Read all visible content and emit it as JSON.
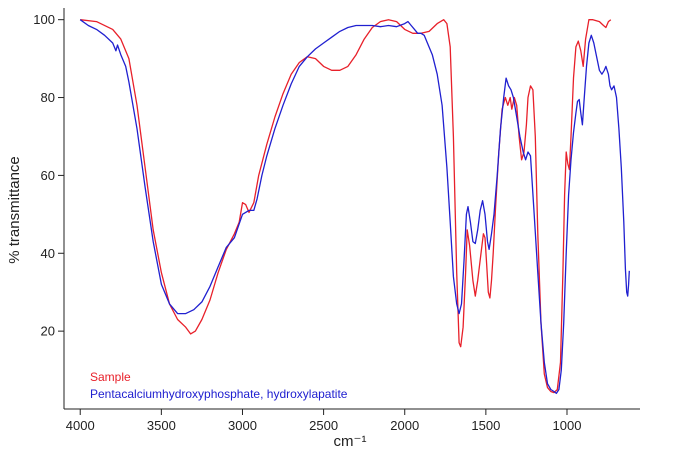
{
  "chart_data": {
    "type": "line",
    "title": "",
    "xlabel": "cm⁻¹",
    "ylabel": "% transmittance",
    "xlim": [
      4100,
      550
    ],
    "ylim": [
      0,
      103
    ],
    "x_reversed": true,
    "x_ticks": [
      4000,
      3500,
      3000,
      2500,
      2000,
      1500,
      1000
    ],
    "y_ticks": [
      20,
      40,
      60,
      80,
      100
    ],
    "grid": false,
    "legend_position": "bottom-left",
    "series": [
      {
        "name": "Sample",
        "color": "#e8202a",
        "points": [
          [
            4000,
            100
          ],
          [
            3900,
            99.5
          ],
          [
            3800,
            97.5
          ],
          [
            3750,
            95
          ],
          [
            3700,
            90
          ],
          [
            3650,
            78
          ],
          [
            3600,
            62
          ],
          [
            3550,
            46
          ],
          [
            3500,
            35
          ],
          [
            3450,
            27
          ],
          [
            3400,
            23
          ],
          [
            3350,
            21
          ],
          [
            3320,
            19.3
          ],
          [
            3290,
            20
          ],
          [
            3250,
            23
          ],
          [
            3200,
            28
          ],
          [
            3150,
            35
          ],
          [
            3100,
            41
          ],
          [
            3050,
            45
          ],
          [
            3020,
            48
          ],
          [
            3000,
            53
          ],
          [
            2980,
            52.5
          ],
          [
            2960,
            50.5
          ],
          [
            2930,
            53
          ],
          [
            2900,
            60
          ],
          [
            2850,
            68
          ],
          [
            2800,
            75
          ],
          [
            2750,
            81
          ],
          [
            2700,
            86
          ],
          [
            2650,
            89
          ],
          [
            2600,
            90.5
          ],
          [
            2550,
            90
          ],
          [
            2500,
            88
          ],
          [
            2450,
            87
          ],
          [
            2400,
            87
          ],
          [
            2350,
            88
          ],
          [
            2300,
            91
          ],
          [
            2250,
            95
          ],
          [
            2200,
            98
          ],
          [
            2150,
            99.5
          ],
          [
            2100,
            100
          ],
          [
            2050,
            99.5
          ],
          [
            2000,
            97.5
          ],
          [
            1950,
            96.5
          ],
          [
            1900,
            96.5
          ],
          [
            1850,
            97
          ],
          [
            1800,
            99
          ],
          [
            1760,
            100
          ],
          [
            1740,
            99
          ],
          [
            1720,
            93
          ],
          [
            1700,
            70
          ],
          [
            1680,
            35
          ],
          [
            1665,
            17
          ],
          [
            1655,
            16
          ],
          [
            1640,
            21
          ],
          [
            1625,
            35
          ],
          [
            1615,
            46
          ],
          [
            1600,
            42
          ],
          [
            1580,
            33
          ],
          [
            1565,
            29
          ],
          [
            1550,
            33
          ],
          [
            1530,
            40
          ],
          [
            1515,
            45
          ],
          [
            1505,
            44
          ],
          [
            1495,
            37
          ],
          [
            1485,
            30
          ],
          [
            1475,
            28.5
          ],
          [
            1465,
            33
          ],
          [
            1455,
            40
          ],
          [
            1440,
            52
          ],
          [
            1420,
            66
          ],
          [
            1400,
            77
          ],
          [
            1380,
            80
          ],
          [
            1365,
            78
          ],
          [
            1350,
            80
          ],
          [
            1340,
            77
          ],
          [
            1325,
            80
          ],
          [
            1310,
            78
          ],
          [
            1295,
            70
          ],
          [
            1280,
            64
          ],
          [
            1265,
            66
          ],
          [
            1250,
            73
          ],
          [
            1240,
            80
          ],
          [
            1225,
            83
          ],
          [
            1210,
            82
          ],
          [
            1195,
            70
          ],
          [
            1180,
            45
          ],
          [
            1160,
            22
          ],
          [
            1140,
            9
          ],
          [
            1120,
            5.5
          ],
          [
            1100,
            4.5
          ],
          [
            1080,
            4.2
          ],
          [
            1060,
            5
          ],
          [
            1040,
            12
          ],
          [
            1025,
            35
          ],
          [
            1015,
            55
          ],
          [
            1005,
            66
          ],
          [
            995,
            63
          ],
          [
            985,
            61.5
          ],
          [
            975,
            70
          ],
          [
            960,
            85
          ],
          [
            945,
            93
          ],
          [
            930,
            94.5
          ],
          [
            915,
            92
          ],
          [
            900,
            88
          ],
          [
            885,
            95
          ],
          [
            865,
            100
          ],
          [
            840,
            100
          ],
          [
            800,
            99.5
          ],
          [
            775,
            98.5
          ],
          [
            760,
            98
          ],
          [
            745,
            99.5
          ],
          [
            730,
            100
          ]
        ]
      },
      {
        "name": "Pentacalciumhydroxyphosphate, hydroxylapatite",
        "color": "#2020d0",
        "points": [
          [
            4000,
            100
          ],
          [
            3950,
            98.5
          ],
          [
            3900,
            97.5
          ],
          [
            3850,
            96
          ],
          [
            3800,
            94
          ],
          [
            3780,
            92
          ],
          [
            3770,
            93.5
          ],
          [
            3750,
            91
          ],
          [
            3720,
            88
          ],
          [
            3700,
            84
          ],
          [
            3650,
            72
          ],
          [
            3600,
            57
          ],
          [
            3550,
            43
          ],
          [
            3500,
            32
          ],
          [
            3450,
            27
          ],
          [
            3400,
            24.5
          ],
          [
            3350,
            24.5
          ],
          [
            3300,
            25.5
          ],
          [
            3250,
            27.5
          ],
          [
            3200,
            31.5
          ],
          [
            3150,
            36.5
          ],
          [
            3100,
            41.5
          ],
          [
            3050,
            44
          ],
          [
            3000,
            50
          ],
          [
            2960,
            51
          ],
          [
            2930,
            51
          ],
          [
            2910,
            54
          ],
          [
            2880,
            60
          ],
          [
            2850,
            65
          ],
          [
            2800,
            72
          ],
          [
            2750,
            78
          ],
          [
            2700,
            83.5
          ],
          [
            2650,
            88
          ],
          [
            2600,
            90.5
          ],
          [
            2550,
            92.5
          ],
          [
            2500,
            94
          ],
          [
            2450,
            95.5
          ],
          [
            2400,
            97
          ],
          [
            2350,
            98
          ],
          [
            2300,
            98.5
          ],
          [
            2250,
            98.5
          ],
          [
            2200,
            98.5
          ],
          [
            2150,
            98.2
          ],
          [
            2100,
            98.5
          ],
          [
            2050,
            98.2
          ],
          [
            2000,
            99
          ],
          [
            1980,
            99.5
          ],
          [
            1960,
            98.5
          ],
          [
            1940,
            97.5
          ],
          [
            1920,
            96.5
          ],
          [
            1900,
            96.5
          ],
          [
            1880,
            96
          ],
          [
            1860,
            94
          ],
          [
            1830,
            91
          ],
          [
            1800,
            86
          ],
          [
            1770,
            78
          ],
          [
            1740,
            62
          ],
          [
            1720,
            48
          ],
          [
            1700,
            34
          ],
          [
            1680,
            27
          ],
          [
            1665,
            24.5
          ],
          [
            1650,
            27
          ],
          [
            1635,
            38
          ],
          [
            1620,
            50
          ],
          [
            1610,
            52
          ],
          [
            1595,
            48
          ],
          [
            1580,
            43
          ],
          [
            1565,
            42.5
          ],
          [
            1550,
            46
          ],
          [
            1535,
            51
          ],
          [
            1520,
            53.5
          ],
          [
            1505,
            50
          ],
          [
            1490,
            43
          ],
          [
            1480,
            41
          ],
          [
            1465,
            45
          ],
          [
            1450,
            50
          ],
          [
            1430,
            60
          ],
          [
            1410,
            72
          ],
          [
            1390,
            80
          ],
          [
            1375,
            85
          ],
          [
            1360,
            83
          ],
          [
            1345,
            82
          ],
          [
            1330,
            80
          ],
          [
            1310,
            75
          ],
          [
            1290,
            70
          ],
          [
            1270,
            66
          ],
          [
            1255,
            64
          ],
          [
            1240,
            66
          ],
          [
            1225,
            65
          ],
          [
            1205,
            52
          ],
          [
            1180,
            35
          ],
          [
            1160,
            22
          ],
          [
            1140,
            12
          ],
          [
            1120,
            6.5
          ],
          [
            1100,
            5
          ],
          [
            1080,
            4.5
          ],
          [
            1065,
            4
          ],
          [
            1050,
            5
          ],
          [
            1035,
            10
          ],
          [
            1020,
            22
          ],
          [
            1005,
            40
          ],
          [
            990,
            55
          ],
          [
            975,
            64
          ],
          [
            960,
            71
          ],
          [
            945,
            76
          ],
          [
            935,
            79
          ],
          [
            925,
            79.5
          ],
          [
            915,
            76
          ],
          [
            905,
            73
          ],
          [
            895,
            79
          ],
          [
            880,
            88
          ],
          [
            865,
            94
          ],
          [
            850,
            96
          ],
          [
            835,
            94
          ],
          [
            820,
            91
          ],
          [
            800,
            87
          ],
          [
            785,
            86
          ],
          [
            770,
            87
          ],
          [
            760,
            88
          ],
          [
            745,
            86
          ],
          [
            735,
            83
          ],
          [
            725,
            82
          ],
          [
            710,
            83
          ],
          [
            695,
            80
          ],
          [
            680,
            72
          ],
          [
            665,
            62
          ],
          [
            650,
            48
          ],
          [
            640,
            36
          ],
          [
            632,
            30
          ],
          [
            626,
            29
          ],
          [
            620,
            32
          ],
          [
            616,
            35.5
          ]
        ]
      }
    ]
  }
}
